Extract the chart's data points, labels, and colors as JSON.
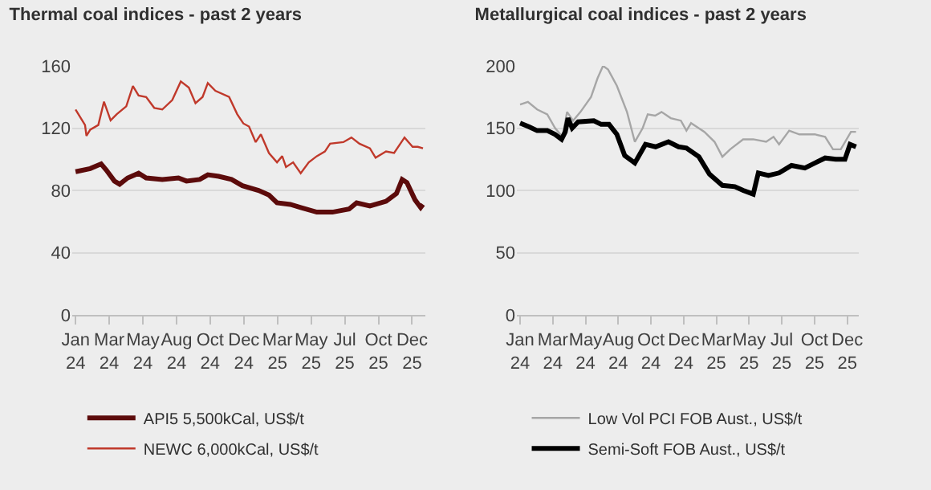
{
  "chart_data": [
    {
      "type": "line",
      "title": "Thermal coal indices - past 2 years",
      "xlim": [
        "2023-12-25",
        "2026-01-08"
      ],
      "xticks": [
        {
          "value": "2024-01-01",
          "label": "Jan 24"
        },
        {
          "value": "2024-03-12",
          "label": "Mar 24"
        },
        {
          "value": "2024-05-22",
          "label": "May 24"
        },
        {
          "value": "2024-08-01",
          "label": "Aug 24"
        },
        {
          "value": "2024-10-11",
          "label": "Oct 24"
        },
        {
          "value": "2024-12-21",
          "label": "Dec 24"
        },
        {
          "value": "2025-03-02",
          "label": "Mar 25"
        },
        {
          "value": "2025-05-12",
          "label": "May 25"
        },
        {
          "value": "2025-07-22",
          "label": "Jul 25"
        },
        {
          "value": "2025-10-01",
          "label": "Oct 25"
        },
        {
          "value": "2025-12-11",
          "label": "Dec 25"
        }
      ],
      "ylim": [
        0,
        160
      ],
      "yticks": [
        0,
        40,
        80,
        120,
        160
      ],
      "grid": "y",
      "legend": "bottom",
      "marker": "none",
      "series": [
        {
          "name": "API5 5,500kCal, US$/t",
          "color": "#5c0b0b",
          "x": [
            "2024-01-01",
            "2024-02-01",
            "2024-02-24",
            "2024-03-06",
            "2024-03-23",
            "2024-04-03",
            "2024-04-20",
            "2024-05-13",
            "2024-05-29",
            "2024-07-02",
            "2024-08-05",
            "2024-08-22",
            "2024-09-19",
            "2024-10-06",
            "2024-10-29",
            "2024-11-25",
            "2024-12-18",
            "2025-01-21",
            "2025-02-12",
            "2025-03-01",
            "2025-03-29",
            "2025-04-20",
            "2025-05-24",
            "2025-06-26",
            "2025-07-31",
            "2025-08-16",
            "2025-09-13",
            "2025-10-17",
            "2025-11-08",
            "2025-11-20",
            "2025-11-30",
            "2025-12-17",
            "2025-12-29",
            "2026-01-03"
          ],
          "values": [
            92,
            94,
            97,
            93,
            86,
            84,
            88,
            91,
            88,
            87,
            88,
            86,
            87,
            90,
            89,
            87,
            83,
            80,
            77,
            72,
            71,
            69,
            66,
            66,
            68,
            72,
            70,
            73,
            78,
            87,
            85,
            74,
            69,
            71
          ]
        },
        {
          "name": "NEWC 6,000kCal, US$/t",
          "color": "#c0392b",
          "x": [
            "2024-01-01",
            "2024-01-21",
            "2024-01-24",
            "2024-02-01",
            "2024-02-18",
            "2024-03-01",
            "2024-03-15",
            "2024-03-28",
            "2024-04-17",
            "2024-05-01",
            "2024-05-13",
            "2024-05-29",
            "2024-06-15",
            "2024-07-02",
            "2024-07-23",
            "2024-08-10",
            "2024-08-27",
            "2024-09-10",
            "2024-09-25",
            "2024-10-06",
            "2024-10-22",
            "2024-11-20",
            "2024-12-07",
            "2024-12-20",
            "2025-01-01",
            "2025-01-15",
            "2025-01-26",
            "2025-02-12",
            "2025-03-01",
            "2025-03-12",
            "2025-03-20",
            "2025-04-04",
            "2025-04-20",
            "2025-05-07",
            "2025-05-24",
            "2025-06-10",
            "2025-06-21",
            "2025-07-19",
            "2025-08-05",
            "2025-08-22",
            "2025-09-13",
            "2025-09-25",
            "2025-10-17",
            "2025-11-03",
            "2025-11-25",
            "2025-12-12",
            "2025-12-23",
            "2026-01-03"
          ],
          "values": [
            132,
            122,
            115,
            119,
            122,
            137,
            125,
            129,
            134,
            147,
            141,
            140,
            133,
            132,
            138,
            150,
            146,
            136,
            140,
            149,
            144,
            140,
            129,
            123,
            121,
            111,
            116,
            104,
            98,
            102,
            95,
            98,
            91,
            98,
            102,
            105,
            110,
            111,
            114,
            110,
            107,
            101,
            105,
            104,
            114,
            108,
            108,
            107
          ]
        }
      ]
    },
    {
      "type": "line",
      "title": "Metallurgical coal indices - past 2 years",
      "xlim": [
        "2023-12-25",
        "2026-01-05"
      ],
      "xticks": [
        {
          "value": "2024-01-01",
          "label": "Jan 24"
        },
        {
          "value": "2024-03-12",
          "label": "Mar 24"
        },
        {
          "value": "2024-05-22",
          "label": "May 24"
        },
        {
          "value": "2024-08-01",
          "label": "Aug 24"
        },
        {
          "value": "2024-10-11",
          "label": "Oct 24"
        },
        {
          "value": "2024-12-21",
          "label": "Dec 24"
        },
        {
          "value": "2025-03-02",
          "label": "Mar 25"
        },
        {
          "value": "2025-05-12",
          "label": "May 25"
        },
        {
          "value": "2025-07-22",
          "label": "Jul 25"
        },
        {
          "value": "2025-10-01",
          "label": "Oct 25"
        },
        {
          "value": "2025-12-11",
          "label": "Dec 25"
        }
      ],
      "ylim": [
        0,
        200
      ],
      "yticks": [
        0,
        50,
        100,
        150,
        200
      ],
      "grid": "y",
      "legend": "bottom",
      "marker": "none",
      "series": [
        {
          "name": "Low Vol PCI FOB Aust., US$/t",
          "color": "#a6a6a6",
          "x": [
            "2024-01-01",
            "2024-01-18",
            "2024-02-07",
            "2024-02-29",
            "2024-03-17",
            "2024-04-02",
            "2024-04-12",
            "2024-04-25",
            "2024-05-11",
            "2024-06-03",
            "2024-06-17",
            "2024-06-29",
            "2024-07-10",
            "2024-07-29",
            "2024-08-20",
            "2024-09-06",
            "2024-09-23",
            "2024-10-04",
            "2024-10-20",
            "2024-11-03",
            "2024-11-23",
            "2024-12-15",
            "2024-12-27",
            "2025-01-06",
            "2025-02-04",
            "2025-02-26",
            "2025-03-15",
            "2025-04-01",
            "2025-04-29",
            "2025-05-21",
            "2025-06-18",
            "2025-07-04",
            "2025-07-16",
            "2025-08-07",
            "2025-08-29",
            "2025-10-02",
            "2025-10-24",
            "2025-11-10",
            "2025-11-27",
            "2025-12-19",
            "2025-12-30"
          ],
          "values": [
            169,
            171,
            165,
            161,
            150,
            143,
            163,
            156,
            163,
            175,
            190,
            200,
            197,
            184,
            163,
            139,
            150,
            161,
            160,
            163,
            158,
            156,
            148,
            154,
            147,
            139,
            127,
            133,
            141,
            141,
            139,
            143,
            137,
            148,
            145,
            145,
            143,
            133,
            133,
            147,
            147
          ]
        },
        {
          "name": "Semi-Soft FOB Aust., US$/t",
          "color": "#000000",
          "x": [
            "2024-01-01",
            "2024-01-21",
            "2024-02-07",
            "2024-02-29",
            "2024-03-17",
            "2024-03-31",
            "2024-04-08",
            "2024-04-14",
            "2024-04-23",
            "2024-05-06",
            "2024-06-09",
            "2024-06-25",
            "2024-07-12",
            "2024-07-29",
            "2024-08-15",
            "2024-09-06",
            "2024-09-29",
            "2024-10-21",
            "2024-11-18",
            "2024-12-10",
            "2024-12-27",
            "2025-01-23",
            "2025-02-15",
            "2025-03-15",
            "2025-04-11",
            "2025-04-29",
            "2025-05-21",
            "2025-06-01",
            "2025-06-23",
            "2025-07-16",
            "2025-08-12",
            "2025-09-10",
            "2025-10-02",
            "2025-10-24",
            "2025-11-16",
            "2025-12-06",
            "2025-12-17",
            "2025-12-30"
          ],
          "values": [
            154,
            151,
            148,
            148,
            145,
            141,
            147,
            158,
            150,
            155,
            156,
            153,
            153,
            145,
            128,
            122,
            137,
            135,
            139,
            135,
            134,
            127,
            113,
            104,
            103,
            100,
            97,
            114,
            112,
            114,
            120,
            118,
            122,
            126,
            125,
            125,
            137,
            135
          ]
        }
      ]
    }
  ]
}
